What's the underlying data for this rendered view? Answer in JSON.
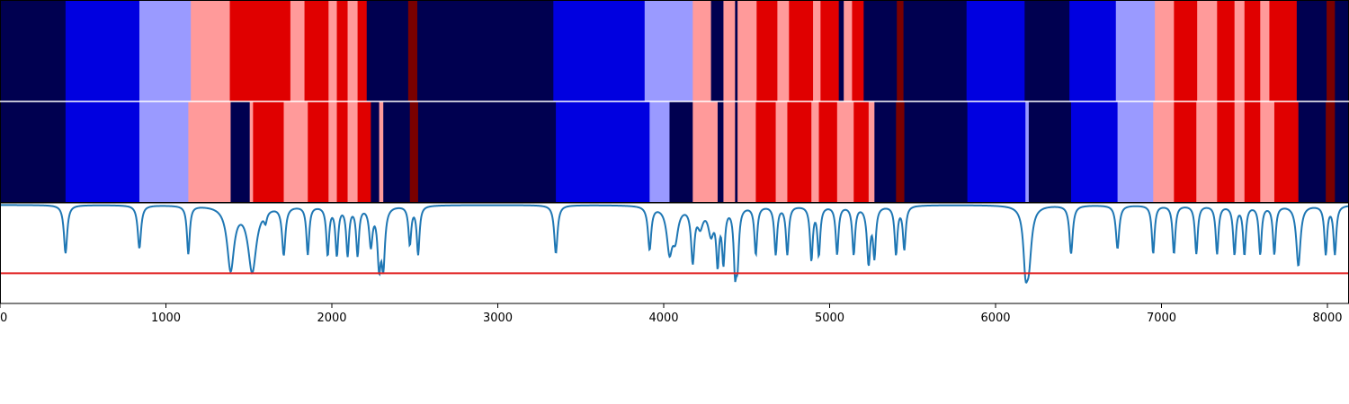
{
  "chart_data": {
    "type": "heatmap",
    "x_range": [
      0,
      8130
    ],
    "x_ticks": [
      0,
      1000,
      2000,
      3000,
      4000,
      5000,
      6000,
      7000,
      8000
    ],
    "x_tick_labels": [
      "0",
      "1000",
      "2000",
      "3000",
      "4000",
      "5000",
      "6000",
      "7000",
      "8000"
    ],
    "colormap": [
      "#000050",
      "#0000e0",
      "#9a9aff",
      "#ff9a9a",
      "#e00000",
      "#7a0000"
    ],
    "rows": [
      {
        "segments": [
          [
            0,
            395,
            0
          ],
          [
            395,
            840,
            1
          ],
          [
            840,
            1150,
            2
          ],
          [
            1150,
            1385,
            3
          ],
          [
            1385,
            1750,
            4
          ],
          [
            1750,
            1835,
            3
          ],
          [
            1835,
            1980,
            4
          ],
          [
            1980,
            2030,
            3
          ],
          [
            2030,
            2095,
            4
          ],
          [
            2095,
            2155,
            3
          ],
          [
            2155,
            2210,
            4
          ],
          [
            2210,
            2460,
            0
          ],
          [
            2460,
            2515,
            5
          ],
          [
            2515,
            3335,
            0
          ],
          [
            3335,
            3885,
            1
          ],
          [
            3885,
            4175,
            2
          ],
          [
            4175,
            4285,
            3
          ],
          [
            4285,
            4360,
            0
          ],
          [
            4360,
            4430,
            3
          ],
          [
            4430,
            4445,
            0
          ],
          [
            4445,
            4560,
            3
          ],
          [
            4560,
            4685,
            4
          ],
          [
            4685,
            4755,
            3
          ],
          [
            4755,
            4900,
            4
          ],
          [
            4900,
            4945,
            3
          ],
          [
            4945,
            5055,
            4
          ],
          [
            5055,
            5085,
            0
          ],
          [
            5085,
            5135,
            3
          ],
          [
            5135,
            5205,
            4
          ],
          [
            5205,
            5405,
            0
          ],
          [
            5405,
            5445,
            5
          ],
          [
            5445,
            5825,
            0
          ],
          [
            5825,
            6175,
            1
          ],
          [
            6175,
            6445,
            0
          ],
          [
            6445,
            6725,
            1
          ],
          [
            6725,
            6960,
            2
          ],
          [
            6960,
            7075,
            3
          ],
          [
            7075,
            7215,
            4
          ],
          [
            7215,
            7335,
            3
          ],
          [
            7335,
            7440,
            4
          ],
          [
            7440,
            7500,
            3
          ],
          [
            7500,
            7595,
            4
          ],
          [
            7595,
            7650,
            3
          ],
          [
            7650,
            7815,
            4
          ],
          [
            7815,
            7995,
            0
          ],
          [
            7995,
            8045,
            5
          ],
          [
            8045,
            8130,
            0
          ]
        ]
      },
      {
        "segments": [
          [
            0,
            395,
            0
          ],
          [
            395,
            840,
            1
          ],
          [
            840,
            1135,
            2
          ],
          [
            1135,
            1390,
            3
          ],
          [
            1390,
            1505,
            0
          ],
          [
            1505,
            1525,
            3
          ],
          [
            1525,
            1710,
            4
          ],
          [
            1710,
            1855,
            3
          ],
          [
            1855,
            1980,
            4
          ],
          [
            1980,
            2030,
            3
          ],
          [
            2030,
            2095,
            4
          ],
          [
            2095,
            2155,
            3
          ],
          [
            2155,
            2235,
            4
          ],
          [
            2235,
            2285,
            0
          ],
          [
            2285,
            2310,
            3
          ],
          [
            2310,
            2470,
            0
          ],
          [
            2470,
            2520,
            5
          ],
          [
            2520,
            3350,
            0
          ],
          [
            3350,
            3915,
            1
          ],
          [
            3915,
            4035,
            2
          ],
          [
            4035,
            4175,
            0
          ],
          [
            4175,
            4325,
            3
          ],
          [
            4325,
            4360,
            0
          ],
          [
            4360,
            4430,
            3
          ],
          [
            4430,
            4445,
            0
          ],
          [
            4445,
            4555,
            3
          ],
          [
            4555,
            4675,
            4
          ],
          [
            4675,
            4745,
            3
          ],
          [
            4745,
            4890,
            4
          ],
          [
            4890,
            4935,
            3
          ],
          [
            4935,
            5045,
            4
          ],
          [
            5045,
            5145,
            3
          ],
          [
            5145,
            5235,
            4
          ],
          [
            5235,
            5270,
            3
          ],
          [
            5270,
            5400,
            0
          ],
          [
            5400,
            5450,
            5
          ],
          [
            5450,
            5830,
            0
          ],
          [
            5830,
            6180,
            1
          ],
          [
            6180,
            6200,
            2
          ],
          [
            6200,
            6455,
            0
          ],
          [
            6455,
            6735,
            1
          ],
          [
            6735,
            6950,
            2
          ],
          [
            6950,
            7075,
            3
          ],
          [
            7075,
            7210,
            4
          ],
          [
            7210,
            7335,
            3
          ],
          [
            7335,
            7440,
            4
          ],
          [
            7440,
            7500,
            3
          ],
          [
            7500,
            7595,
            4
          ],
          [
            7595,
            7680,
            3
          ],
          [
            7680,
            7825,
            4
          ],
          [
            7825,
            7990,
            0
          ],
          [
            7990,
            8045,
            5
          ],
          [
            8045,
            8130,
            0
          ]
        ]
      }
    ],
    "line": {
      "color": "#1f77b4",
      "baseline": 0.98,
      "ylim": [
        0,
        1
      ],
      "threshold": 0.3,
      "threshold_color": "#e02020",
      "dips": [
        [
          395,
          0.5,
          12
        ],
        [
          840,
          0.55,
          12
        ],
        [
          1135,
          0.5,
          10
        ],
        [
          1390,
          0.35,
          25
        ],
        [
          1520,
          0.33,
          30
        ],
        [
          1600,
          0.88,
          10
        ],
        [
          1710,
          0.5,
          12
        ],
        [
          1855,
          0.5,
          10
        ],
        [
          1975,
          0.5,
          10
        ],
        [
          2030,
          0.5,
          10
        ],
        [
          2095,
          0.5,
          10
        ],
        [
          2155,
          0.5,
          10
        ],
        [
          2235,
          0.6,
          12
        ],
        [
          2285,
          0.42,
          12
        ],
        [
          2310,
          0.42,
          12
        ],
        [
          2470,
          0.6,
          10
        ],
        [
          2520,
          0.5,
          10
        ],
        [
          3350,
          0.5,
          12
        ],
        [
          3915,
          0.55,
          12
        ],
        [
          4035,
          0.55,
          20
        ],
        [
          4070,
          0.7,
          20
        ],
        [
          4175,
          0.45,
          12
        ],
        [
          4220,
          0.8,
          20
        ],
        [
          4285,
          0.72,
          20
        ],
        [
          4325,
          0.45,
          10
        ],
        [
          4360,
          0.45,
          10
        ],
        [
          4430,
          0.4,
          10
        ],
        [
          4445,
          0.5,
          10
        ],
        [
          4555,
          0.5,
          10
        ],
        [
          4675,
          0.5,
          10
        ],
        [
          4745,
          0.5,
          10
        ],
        [
          4890,
          0.45,
          10
        ],
        [
          4935,
          0.5,
          10
        ],
        [
          5045,
          0.5,
          10
        ],
        [
          5145,
          0.5,
          10
        ],
        [
          5235,
          0.42,
          12
        ],
        [
          5270,
          0.5,
          10
        ],
        [
          5400,
          0.5,
          10
        ],
        [
          5450,
          0.55,
          10
        ],
        [
          6180,
          0.5,
          15
        ],
        [
          6200,
          0.45,
          20
        ],
        [
          6455,
          0.5,
          12
        ],
        [
          6735,
          0.55,
          12
        ],
        [
          6950,
          0.5,
          10
        ],
        [
          7075,
          0.5,
          10
        ],
        [
          7210,
          0.5,
          10
        ],
        [
          7335,
          0.5,
          10
        ],
        [
          7440,
          0.5,
          10
        ],
        [
          7500,
          0.5,
          10
        ],
        [
          7595,
          0.5,
          10
        ],
        [
          7680,
          0.5,
          10
        ],
        [
          7825,
          0.38,
          15
        ],
        [
          7990,
          0.5,
          10
        ],
        [
          8045,
          0.5,
          10
        ]
      ]
    }
  }
}
